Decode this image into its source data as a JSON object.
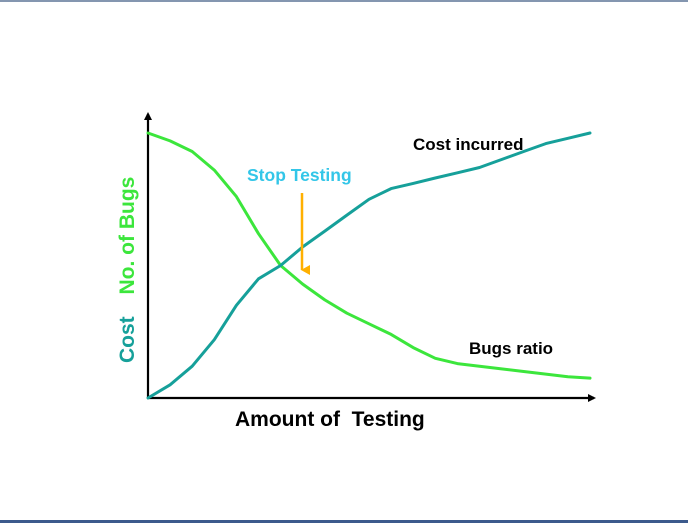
{
  "chart_data": {
    "type": "line",
    "title": "",
    "xlabel": "Amount of  Testing",
    "ylabel_cost": "Cost",
    "ylabel_bugs": "No. of Bugs",
    "xlim": [
      0,
      10
    ],
    "ylim": [
      0,
      10
    ],
    "grid": false,
    "series": [
      {
        "name": "Cost incurred",
        "color": "#16a09a",
        "x": [
          0,
          0.5,
          1.0,
          1.5,
          2.0,
          2.5,
          3.0,
          3.5,
          4.0,
          4.5,
          5.0,
          5.5,
          6.0,
          6.5,
          7.0,
          7.5,
          8.0,
          8.5,
          9.0,
          9.5,
          10.0
        ],
        "y": [
          0,
          0.5,
          1.2,
          2.2,
          3.5,
          4.5,
          5.0,
          5.7,
          6.3,
          6.9,
          7.5,
          7.9,
          8.1,
          8.3,
          8.5,
          8.7,
          9.0,
          9.3,
          9.6,
          9.8,
          10.0
        ]
      },
      {
        "name": "Bugs ratio",
        "color": "#3ce63c",
        "x": [
          0,
          0.5,
          1.0,
          1.5,
          2.0,
          2.5,
          3.0,
          3.5,
          4.0,
          4.5,
          5.0,
          5.5,
          6.0,
          6.5,
          7.0,
          7.5,
          8.0,
          8.5,
          9.0,
          9.5,
          10.0
        ],
        "y": [
          10.0,
          9.7,
          9.3,
          8.6,
          7.6,
          6.2,
          5.0,
          4.3,
          3.7,
          3.2,
          2.8,
          2.4,
          1.9,
          1.5,
          1.3,
          1.2,
          1.1,
          1.0,
          0.9,
          0.8,
          0.75
        ]
      }
    ],
    "annotations": {
      "stop_testing": "Stop Testing",
      "cost_label": "Cost incurred",
      "bugs_label": "Bugs ratio"
    },
    "colors": {
      "axis": "#000000",
      "cost": "#16a09a",
      "bugs": "#3ce63c",
      "stop_text": "#33c6e8",
      "arrow": "#ffb000"
    }
  }
}
